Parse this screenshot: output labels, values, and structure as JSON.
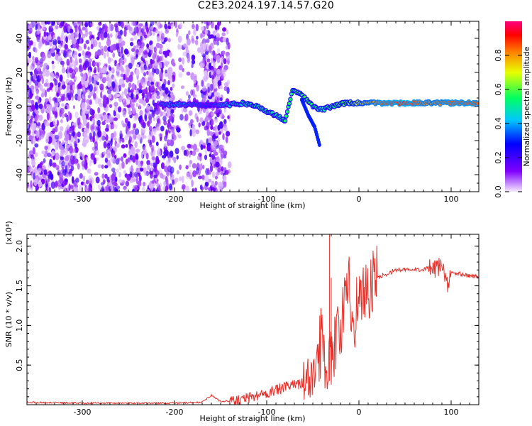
{
  "title": "C2E3.2024.197.14.57.G20",
  "chart_data": [
    {
      "type": "heatmap",
      "xlabel": "Height of straight line (km)",
      "ylabel": "Frequency (Hz)",
      "xlim": [
        -360,
        130
      ],
      "ylim": [
        -50,
        50
      ],
      "xticks": [
        -300,
        -200,
        -100,
        0,
        100
      ],
      "yticks": [
        -40,
        -20,
        0,
        20,
        40
      ],
      "colorbar": {
        "label": "Normalized spectral amplitude",
        "range": [
          0,
          1
        ],
        "ticks": [
          "0.0",
          "0.2",
          "0.4",
          "0.6",
          "0.8"
        ],
        "colors": [
          "#f4e8ff",
          "#8000ff",
          "#0000ff",
          "#00c8ff",
          "#00ff60",
          "#e8ff00",
          "#ff8000",
          "#ff0000",
          "#ff0080"
        ]
      },
      "noise_region_x": [
        -360,
        -140
      ],
      "signal_trace": [
        {
          "x": -215,
          "y": 1,
          "a": 0.35
        },
        {
          "x": -200,
          "y": 1,
          "a": 0.4
        },
        {
          "x": -180,
          "y": 1,
          "a": 0.35
        },
        {
          "x": -160,
          "y": 1,
          "a": 0.3
        },
        {
          "x": -140,
          "y": 1,
          "a": 0.45
        },
        {
          "x": -125,
          "y": 2,
          "a": 0.5
        },
        {
          "x": -110,
          "y": 0,
          "a": 0.55
        },
        {
          "x": -95,
          "y": -4,
          "a": 0.5
        },
        {
          "x": -80,
          "y": -8,
          "a": 0.55
        },
        {
          "x": -72,
          "y": 10,
          "a": 0.55
        },
        {
          "x": -60,
          "y": 6,
          "a": 0.6
        },
        {
          "x": -50,
          "y": 0,
          "a": 0.55
        },
        {
          "x": -40,
          "y": -2,
          "a": 0.5
        },
        {
          "x": -30,
          "y": 0,
          "a": 0.55
        },
        {
          "x": -15,
          "y": 2,
          "a": 0.6
        },
        {
          "x": 0,
          "y": 2,
          "a": 0.7
        },
        {
          "x": 25,
          "y": 2,
          "a": 0.85
        },
        {
          "x": 50,
          "y": 2,
          "a": 0.9
        },
        {
          "x": 75,
          "y": 2,
          "a": 0.8
        },
        {
          "x": 100,
          "y": 2,
          "a": 0.85
        },
        {
          "x": 130,
          "y": 2,
          "a": 0.85
        }
      ],
      "branch_trace": [
        {
          "x": -62,
          "y": 4
        },
        {
          "x": -55,
          "y": -5
        },
        {
          "x": -48,
          "y": -12
        },
        {
          "x": -42,
          "y": -24
        }
      ]
    },
    {
      "type": "line",
      "xlabel": "Height of straight line (km)",
      "ylabel": "SNR (10 * v/v)",
      "scale_label": "(x10⁴)",
      "xlim": [
        -360,
        130
      ],
      "ylim": [
        0,
        2.15
      ],
      "xticks": [
        -300,
        -200,
        -100,
        0,
        100
      ],
      "yticks": [
        "0.5",
        "1.0",
        "1.5",
        "2.0"
      ],
      "color": "#e8302a",
      "series": [
        {
          "x": [
            -360,
            -300,
            -200,
            -170,
            -160,
            -150,
            -130,
            -115,
            -100,
            -90,
            -80,
            -70,
            -60,
            -50,
            -45,
            -40,
            -35,
            -30,
            -25,
            -20,
            -15,
            -10,
            -5,
            0,
            10,
            20,
            30,
            40,
            60,
            75,
            85,
            90,
            95,
            100,
            110,
            120,
            130
          ],
          "values": [
            0.03,
            0.02,
            0.02,
            0.03,
            0.12,
            0.04,
            0.05,
            0.1,
            0.15,
            0.18,
            0.22,
            0.25,
            0.28,
            0.35,
            0.55,
            0.9,
            0.45,
            0.7,
            0.8,
            0.95,
            1.3,
            1.45,
            1.1,
            1.4,
            1.45,
            1.6,
            1.65,
            1.7,
            1.7,
            1.72,
            1.7,
            1.8,
            1.5,
            1.65,
            1.65,
            1.62,
            1.62
          ]
        }
      ],
      "spikes": [
        {
          "x": -32,
          "y": 2.15
        },
        {
          "x": -30,
          "y": 1.6
        }
      ]
    }
  ]
}
